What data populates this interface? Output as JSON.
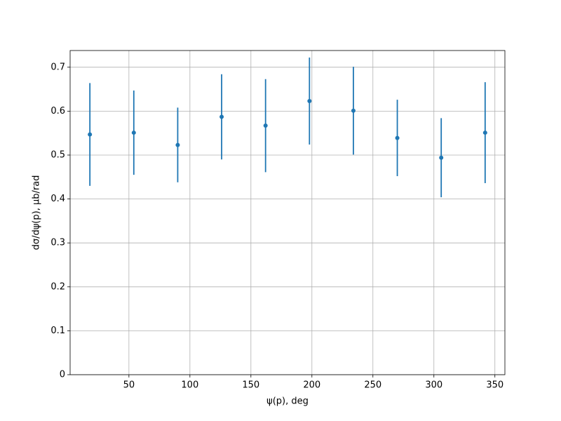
{
  "chart_data": {
    "type": "errorbar",
    "x_label": "ψ(p), deg",
    "y_label": "dσ/dψ(p), μb/rad",
    "x": [
      18,
      54,
      90,
      126,
      162,
      198,
      234,
      270,
      306,
      342
    ],
    "values": [
      0.547,
      0.551,
      0.523,
      0.587,
      0.567,
      0.623,
      0.601,
      0.539,
      0.494,
      0.551
    ],
    "errors": [
      0.117,
      0.096,
      0.085,
      0.097,
      0.106,
      0.099,
      0.1,
      0.087,
      0.09,
      0.115
    ],
    "color": "#1f77b4",
    "xlim": [
      1.8,
      358.2
    ],
    "xticks": [
      50,
      100,
      150,
      200,
      250,
      300,
      350
    ],
    "ylim": [
      0,
      0.738
    ],
    "yticks": [
      0.0,
      0.1,
      0.2,
      0.3,
      0.4,
      0.5,
      0.6,
      0.7
    ],
    "grid": true
  }
}
